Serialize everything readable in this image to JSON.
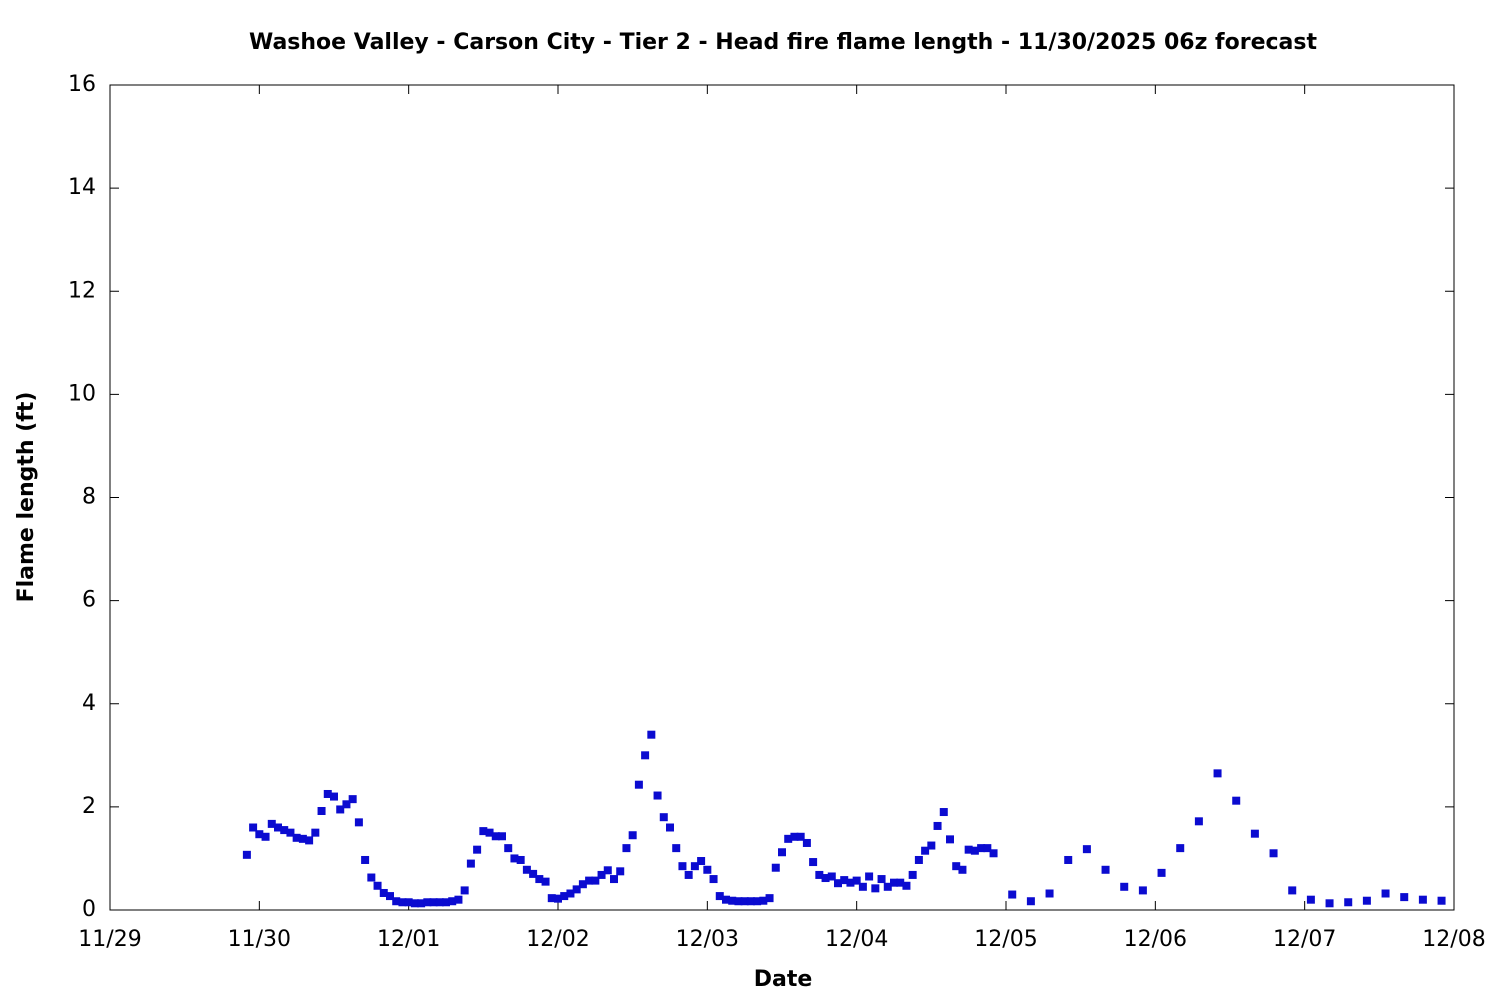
{
  "chart_data": {
    "type": "scatter",
    "title": "Washoe Valley - Carson City - Tier 2 - Head fire flame length - 11/30/2025 06z forecast",
    "x_label": "Date",
    "y_label": "Flame length (ft)",
    "series": [
      {
        "color": "#0b0bd0",
        "x": [
          22,
          23,
          24,
          25,
          26,
          27,
          28,
          29,
          30,
          31,
          32,
          33,
          34,
          35,
          36,
          37,
          38,
          39,
          40,
          41,
          42,
          43,
          44,
          45,
          46,
          47,
          48,
          49,
          50,
          51,
          52,
          53,
          54,
          55,
          56,
          57,
          58,
          59,
          60,
          61,
          62,
          63,
          64,
          65,
          66,
          67,
          68,
          69,
          70,
          71,
          72,
          73,
          74,
          75,
          76,
          77,
          78,
          79,
          80,
          81,
          82,
          83,
          84,
          85,
          86,
          87,
          88,
          89,
          90,
          91,
          92,
          93,
          94,
          95,
          96,
          97,
          98,
          99,
          100,
          101,
          102,
          103,
          104,
          105,
          106,
          107,
          108,
          109,
          110,
          111,
          112,
          113,
          114,
          115,
          116,
          117,
          118,
          119,
          120,
          121,
          122,
          123,
          124,
          125,
          126,
          127,
          128,
          129,
          130,
          131,
          132,
          133,
          134,
          135,
          136,
          137,
          138,
          139,
          140,
          141,
          142,
          145,
          148,
          151,
          154,
          157,
          160,
          163,
          166,
          169,
          172,
          175,
          178,
          181,
          184,
          187,
          190,
          193,
          196,
          199,
          202,
          205,
          208,
          211,
          214
        ],
        "values": [
          1.07,
          1.6,
          1.47,
          1.42,
          1.67,
          1.6,
          1.55,
          1.5,
          1.4,
          1.38,
          1.35,
          1.5,
          1.92,
          2.25,
          2.2,
          1.95,
          2.05,
          2.15,
          1.7,
          0.97,
          0.63,
          0.47,
          0.33,
          0.27,
          0.17,
          0.15,
          0.15,
          0.13,
          0.13,
          0.15,
          0.15,
          0.15,
          0.15,
          0.17,
          0.2,
          0.38,
          0.9,
          1.17,
          1.53,
          1.5,
          1.43,
          1.43,
          1.2,
          1.0,
          0.97,
          0.78,
          0.7,
          0.6,
          0.55,
          0.23,
          0.22,
          0.27,
          0.32,
          0.4,
          0.5,
          0.57,
          0.57,
          0.68,
          0.77,
          0.6,
          0.75,
          1.2,
          1.45,
          2.43,
          3.0,
          3.4,
          2.22,
          1.8,
          1.6,
          1.2,
          0.85,
          0.68,
          0.85,
          0.95,
          0.78,
          0.6,
          0.27,
          0.2,
          0.18,
          0.17,
          0.17,
          0.17,
          0.17,
          0.18,
          0.23,
          0.82,
          1.12,
          1.38,
          1.42,
          1.42,
          1.3,
          0.93,
          0.68,
          0.62,
          0.65,
          0.52,
          0.58,
          0.53,
          0.57,
          0.45,
          0.65,
          0.42,
          0.6,
          0.45,
          0.53,
          0.53,
          0.47,
          0.68,
          0.97,
          1.15,
          1.25,
          1.63,
          1.9,
          1.37,
          0.85,
          0.78,
          1.17,
          1.15,
          1.2,
          1.2,
          1.1,
          0.3,
          0.17,
          0.32,
          0.97,
          1.18,
          0.78,
          0.45,
          0.38,
          0.72,
          1.2,
          1.72,
          2.65,
          2.12,
          1.48,
          1.1,
          0.38,
          0.2,
          0.13,
          0.15,
          0.18,
          0.32,
          0.25,
          0.2,
          0.18
        ]
      }
    ],
    "xlim": [
      0,
      216
    ],
    "xticks": [
      {
        "value": 0,
        "label": "11/29"
      },
      {
        "value": 24,
        "label": "11/30"
      },
      {
        "value": 48,
        "label": "12/01"
      },
      {
        "value": 72,
        "label": "12/02"
      },
      {
        "value": 96,
        "label": "12/03"
      },
      {
        "value": 120,
        "label": "12/04"
      },
      {
        "value": 144,
        "label": "12/05"
      },
      {
        "value": 168,
        "label": "12/06"
      },
      {
        "value": 192,
        "label": "12/07"
      },
      {
        "value": 216,
        "label": "12/08"
      }
    ],
    "ylim": [
      0,
      16
    ],
    "yticks": [
      0,
      2,
      4,
      6,
      8,
      10,
      12,
      14,
      16
    ],
    "grid": false
  }
}
